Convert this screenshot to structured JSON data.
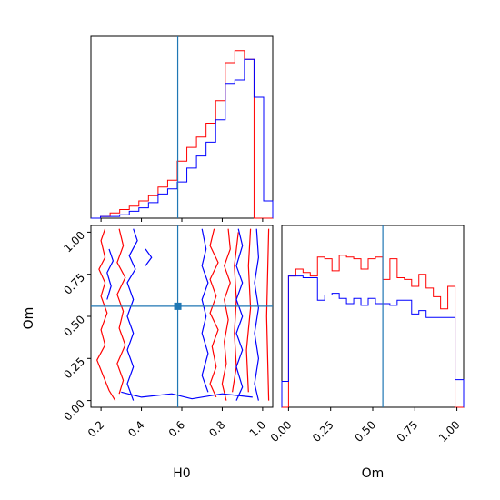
{
  "chart_data": {
    "type": "corner",
    "parameters": [
      "H0",
      "Om"
    ],
    "xlabel_H0": "H0",
    "xlabel_Om": "Om",
    "ylabel_Om": "Om",
    "truth": {
      "H0": 0.58,
      "Om": 0.56
    },
    "ranges": {
      "H0": [
        0.15,
        1.05
      ],
      "Om": [
        -0.04,
        1.04
      ]
    },
    "ticks": {
      "H0": [
        "0.2",
        "0.4",
        "0.6",
        "0.8",
        "1.0"
      ],
      "Om": [
        "0.00",
        "0.25",
        "0.50",
        "0.75",
        "1.00"
      ]
    },
    "colors": {
      "red": "#ff0000",
      "blue": "#0000ff",
      "truth": "#1f77b4"
    },
    "H0_hist": {
      "edges": [
        0.15,
        0.1975,
        0.245,
        0.2925,
        0.34,
        0.3875,
        0.435,
        0.4825,
        0.53,
        0.5775,
        0.625,
        0.6725,
        0.72,
        0.7675,
        0.815,
        0.8625,
        0.91,
        0.9575,
        1.005,
        1.05
      ],
      "red": [
        0.0,
        0.01,
        0.03,
        0.05,
        0.07,
        0.1,
        0.13,
        0.18,
        0.22,
        0.33,
        0.41,
        0.47,
        0.55,
        0.68,
        0.9,
        0.97,
        0.92,
        0.0,
        0.0
      ],
      "blue": [
        0.0,
        0.01,
        0.01,
        0.02,
        0.04,
        0.06,
        0.09,
        0.14,
        0.17,
        0.21,
        0.29,
        0.36,
        0.44,
        0.57,
        0.78,
        0.8,
        0.92,
        0.7,
        0.1
      ]
    },
    "Om_hist": {
      "edges": [
        -0.04,
        0.0,
        0.043,
        0.086,
        0.129,
        0.172,
        0.215,
        0.258,
        0.301,
        0.344,
        0.387,
        0.43,
        0.473,
        0.516,
        0.559,
        0.602,
        0.645,
        0.688,
        0.731,
        0.774,
        0.817,
        0.86,
        0.903,
        0.946,
        0.989,
        1.04
      ],
      "red": [
        0.0,
        0.76,
        0.8,
        0.78,
        0.76,
        0.87,
        0.86,
        0.79,
        0.88,
        0.87,
        0.86,
        0.8,
        0.86,
        0.87,
        0.74,
        0.86,
        0.75,
        0.74,
        0.7,
        0.77,
        0.69,
        0.64,
        0.57,
        0.7,
        0.0
      ],
      "blue": [
        0.15,
        0.76,
        0.76,
        0.75,
        0.75,
        0.62,
        0.65,
        0.66,
        0.63,
        0.6,
        0.63,
        0.59,
        0.63,
        0.6,
        0.6,
        0.59,
        0.62,
        0.62,
        0.54,
        0.56,
        0.52,
        0.52,
        0.52,
        0.52,
        0.16
      ]
    },
    "contours": {
      "red": [
        [
          [
            0.22,
            1.02
          ],
          [
            0.2,
            0.95
          ],
          [
            0.22,
            0.85
          ],
          [
            0.19,
            0.78
          ],
          [
            0.22,
            0.7
          ],
          [
            0.2,
            0.62
          ],
          [
            0.23,
            0.52
          ],
          [
            0.2,
            0.42
          ],
          [
            0.22,
            0.33
          ],
          [
            0.18,
            0.24
          ],
          [
            0.21,
            0.15
          ],
          [
            0.24,
            0.06
          ],
          [
            0.27,
            0.0
          ]
        ],
        [
          [
            0.29,
            1.02
          ],
          [
            0.31,
            0.92
          ],
          [
            0.28,
            0.82
          ],
          [
            0.32,
            0.73
          ],
          [
            0.28,
            0.63
          ],
          [
            0.31,
            0.53
          ],
          [
            0.29,
            0.43
          ],
          [
            0.32,
            0.33
          ],
          [
            0.28,
            0.22
          ],
          [
            0.31,
            0.12
          ],
          [
            0.29,
            0.04
          ]
        ],
        [
          [
            0.76,
            1.02
          ],
          [
            0.74,
            0.92
          ],
          [
            0.78,
            0.82
          ],
          [
            0.74,
            0.72
          ],
          [
            0.77,
            0.62
          ],
          [
            0.74,
            0.52
          ],
          [
            0.78,
            0.42
          ],
          [
            0.75,
            0.32
          ],
          [
            0.77,
            0.2
          ],
          [
            0.74,
            0.1
          ],
          [
            0.77,
            0.02
          ]
        ],
        [
          [
            0.83,
            1.02
          ],
          [
            0.84,
            0.9
          ],
          [
            0.81,
            0.8
          ],
          [
            0.84,
            0.7
          ],
          [
            0.81,
            0.6
          ],
          [
            0.83,
            0.48
          ],
          [
            0.81,
            0.35
          ],
          [
            0.82,
            0.22
          ],
          [
            0.8,
            0.1
          ],
          [
            0.82,
            0.0
          ]
        ],
        [
          [
            0.88,
            1.0
          ],
          [
            0.86,
            0.8
          ],
          [
            0.87,
            0.6
          ],
          [
            0.86,
            0.4
          ],
          [
            0.87,
            0.2
          ],
          [
            0.85,
            0.05
          ]
        ],
        [
          [
            0.94,
            1.02
          ],
          [
            0.93,
            0.8
          ],
          [
            0.94,
            0.55
          ],
          [
            0.92,
            0.3
          ],
          [
            0.93,
            0.05
          ]
        ],
        [
          [
            1.03,
            1.02
          ],
          [
            1.02,
            0.5
          ],
          [
            1.03,
            0.0
          ]
        ]
      ],
      "blue": [
        [
          [
            0.24,
            0.9
          ],
          [
            0.26,
            0.83
          ],
          [
            0.23,
            0.76
          ],
          [
            0.25,
            0.68
          ],
          [
            0.23,
            0.6
          ]
        ],
        [
          [
            0.36,
            1.02
          ],
          [
            0.38,
            0.95
          ],
          [
            0.34,
            0.86
          ],
          [
            0.37,
            0.78
          ],
          [
            0.33,
            0.7
          ],
          [
            0.36,
            0.6
          ],
          [
            0.33,
            0.5
          ],
          [
            0.36,
            0.4
          ],
          [
            0.33,
            0.3
          ],
          [
            0.36,
            0.2
          ],
          [
            0.33,
            0.1
          ],
          [
            0.36,
            0.0
          ]
        ],
        [
          [
            0.42,
            0.9
          ],
          [
            0.45,
            0.85
          ],
          [
            0.42,
            0.8
          ]
        ],
        [
          [
            0.7,
            1.02
          ],
          [
            0.72,
            0.9
          ],
          [
            0.7,
            0.8
          ],
          [
            0.73,
            0.7
          ],
          [
            0.7,
            0.6
          ],
          [
            0.72,
            0.5
          ],
          [
            0.7,
            0.4
          ],
          [
            0.73,
            0.28
          ],
          [
            0.7,
            0.15
          ],
          [
            0.73,
            0.05
          ]
        ],
        [
          [
            0.88,
            1.02
          ],
          [
            0.9,
            0.92
          ],
          [
            0.87,
            0.8
          ],
          [
            0.9,
            0.7
          ],
          [
            0.87,
            0.6
          ],
          [
            0.9,
            0.5
          ],
          [
            0.87,
            0.4
          ],
          [
            0.9,
            0.3
          ],
          [
            0.87,
            0.2
          ],
          [
            0.9,
            0.08
          ],
          [
            0.87,
            0.0
          ]
        ],
        [
          [
            0.97,
            1.02
          ],
          [
            0.98,
            0.85
          ],
          [
            0.96,
            0.7
          ],
          [
            0.98,
            0.55
          ],
          [
            0.96,
            0.4
          ],
          [
            0.98,
            0.25
          ],
          [
            0.96,
            0.1
          ],
          [
            0.98,
            0.0
          ]
        ],
        [
          [
            0.3,
            0.05
          ],
          [
            0.4,
            0.02
          ],
          [
            0.55,
            0.04
          ],
          [
            0.65,
            0.01
          ],
          [
            0.8,
            0.04
          ],
          [
            0.95,
            0.02
          ]
        ]
      ]
    }
  }
}
